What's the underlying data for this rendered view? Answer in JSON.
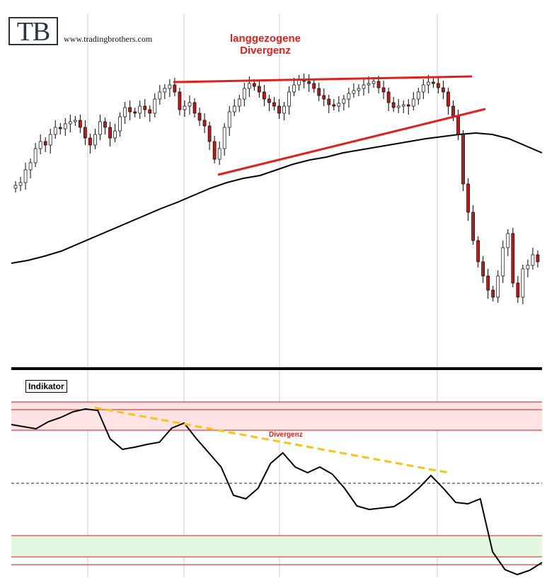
{
  "header": {
    "logo_text": "TB",
    "site_url": "www.tradingbrothers.com",
    "annotation_line1": "langgezogene",
    "annotation_line2": "Divergenz"
  },
  "indicator": {
    "label": "Indikator",
    "divergence_label": "Divergenz"
  },
  "colors": {
    "annotation": "#e0201c",
    "upper_zone": "#fde3e3",
    "lower_zone": "#e3f8e0",
    "dashed_divergence": "#f5c518",
    "candle_up": "#ffffff",
    "candle_down": "#c01818",
    "moving_average": "#000000",
    "grid": "#cccccc"
  },
  "chart_data": [
    {
      "type": "candlestick",
      "series": [
        {
          "name": "",
          "kind": "ohlc",
          "close_path": [
            262,
            258,
            240,
            230,
            210,
            200,
            205,
            190,
            180,
            182,
            175,
            172,
            170,
            180,
            195,
            205,
            190,
            172,
            180,
            195,
            185,
            165,
            152,
            158,
            160,
            150,
            155,
            160,
            140,
            130,
            125,
            120,
            130,
            155,
            150,
            145,
            160,
            170,
            178,
            200,
            225,
            210,
            180,
            158,
            150,
            140,
            125,
            118,
            122,
            130,
            140,
            145,
            150,
            160,
            150,
            130,
            120,
            112,
            115,
            118,
            125,
            135,
            140,
            148,
            150,
            146,
            140,
            132,
            128,
            125,
            120,
            118,
            115,
            124,
            130,
            145,
            152,
            150,
            148,
            150,
            140,
            130,
            120,
            116,
            118,
            124,
            130,
            150,
            165,
            190,
            260,
            300,
            340,
            370,
            390,
            410,
            420,
            390,
            350,
            330,
            400,
            420,
            380,
            375,
            360,
            370
          ]
        },
        {
          "name": "",
          "kind": "moving-average",
          "path": [
            372,
            368,
            362,
            355,
            345,
            335,
            325,
            315,
            305,
            295,
            286,
            276,
            266,
            258,
            252,
            248,
            240,
            232,
            226,
            222,
            216,
            212,
            208,
            204,
            200,
            196,
            193,
            190,
            188,
            190,
            196,
            206,
            216
          ]
        }
      ],
      "trendlines": [
        "upper-resistance",
        "lower-support"
      ]
    },
    {
      "type": "line",
      "series": [
        {
          "name": "",
          "path": [
            600,
            603,
            606,
            596,
            590,
            582,
            578,
            580,
            620,
            635,
            632,
            628,
            625,
            605,
            598,
            620,
            640,
            660,
            700,
            705,
            690,
            655,
            640,
            660,
            668,
            660,
            670,
            690,
            715,
            720,
            718,
            716,
            705,
            690,
            672,
            690,
            710,
            712,
            705,
            780,
            805,
            812,
            806,
            795
          ]
        }
      ],
      "zones": [
        "overbought",
        "oversold"
      ],
      "divergence_line": true
    }
  ]
}
